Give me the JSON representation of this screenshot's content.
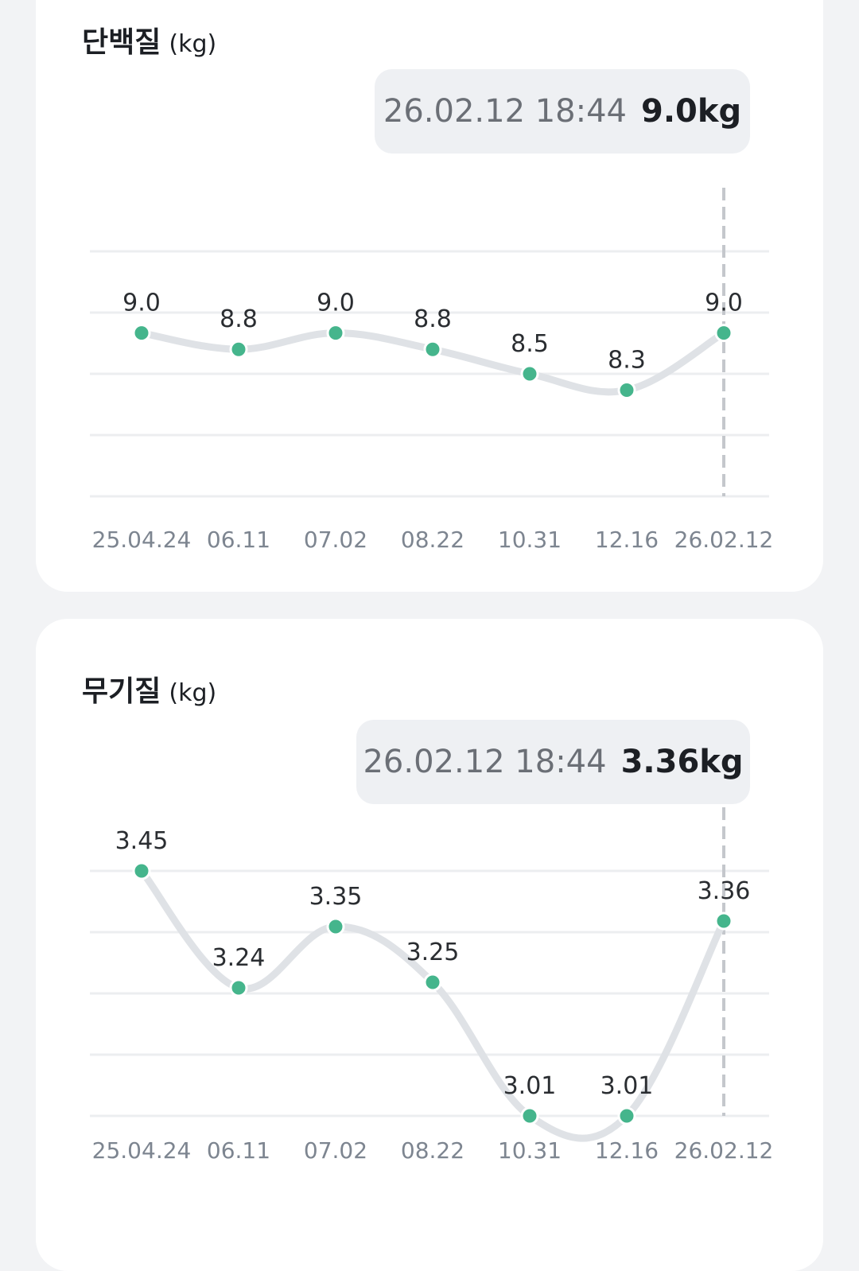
{
  "charts": [
    {
      "title": "단백질",
      "unit": "(kg)",
      "tooltip": {
        "datetime": "26.02.12 18:44",
        "value": "9.0kg"
      },
      "colors": {
        "point": "#45b58c",
        "line": "#dfe2e6",
        "grid": "#eceef0",
        "guide": "#c4c7cc",
        "axis_text": "#7d8590",
        "label_text": "#2a2d31"
      }
    },
    {
      "title": "무기질",
      "unit": "(kg)",
      "tooltip": {
        "datetime": "26.02.12 18:44",
        "value": "3.36kg"
      },
      "colors": {
        "point": "#45b58c",
        "line": "#dfe2e6",
        "grid": "#eceef0",
        "guide": "#c4c7cc",
        "axis_text": "#7d8590",
        "label_text": "#2a2d31"
      }
    }
  ],
  "chart_data": [
    {
      "type": "line",
      "title": "단백질 (kg)",
      "categories": [
        "25.04.24",
        "06.11",
        "07.02",
        "08.22",
        "10.31",
        "12.16",
        "26.02.12"
      ],
      "series": [
        {
          "values": [
            9.0,
            8.8,
            9.0,
            8.8,
            8.5,
            8.3,
            9.0
          ]
        }
      ],
      "value_labels": [
        "9.0",
        "8.8",
        "9.0",
        "8.8",
        "8.5",
        "8.3",
        "9.0"
      ],
      "ylim": [
        7.0,
        10.0
      ],
      "grid": true,
      "selected_index": 6
    },
    {
      "type": "line",
      "title": "무기질 (kg)",
      "categories": [
        "25.04.24",
        "06.11",
        "07.02",
        "08.22",
        "10.31",
        "12.16",
        "26.02.12"
      ],
      "series": [
        {
          "values": [
            3.45,
            3.24,
            3.35,
            3.25,
            3.01,
            3.01,
            3.36
          ]
        }
      ],
      "value_labels": [
        "3.45",
        "3.24",
        "3.35",
        "3.25",
        "3.01",
        "3.01",
        "3.36"
      ],
      "ylim": [
        3.01,
        3.45
      ],
      "grid": true,
      "selected_index": 6
    }
  ]
}
